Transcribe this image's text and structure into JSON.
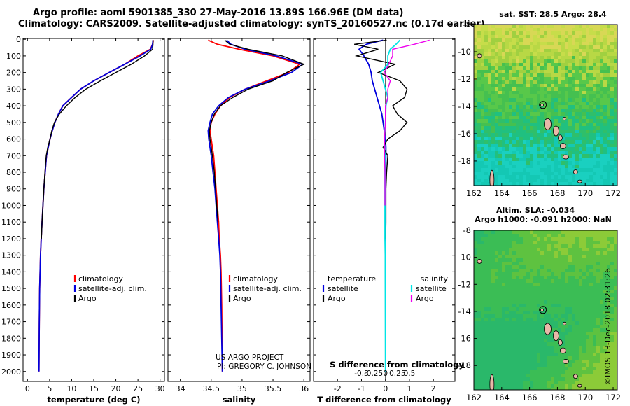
{
  "header": {
    "title": "Argo profile: aoml 5901385_330 27-May-2016 13.89S 166.96E (DM data)",
    "subtitle": "Climatology: CARS2009. Satellite-adjusted climatology: synTS_20160527.nc (0.17d earlier)"
  },
  "colors": {
    "climatology": "#ff0000",
    "satellite": "#0000dd",
    "argo": "#000000",
    "sal_satellite": "#00e5e5",
    "sal_argo": "#ee00ee"
  },
  "chart_data": [
    {
      "type": "line",
      "name": "temperature-profile",
      "xlabel": "temperature (deg C)",
      "ylabel": "",
      "xlim": [
        -1,
        31
      ],
      "ylim": [
        2060,
        -5
      ],
      "xticks": [
        0,
        5,
        10,
        15,
        20,
        25,
        30
      ],
      "yticks": [
        0,
        100,
        200,
        300,
        400,
        500,
        600,
        700,
        800,
        900,
        1000,
        1100,
        1200,
        1300,
        1400,
        1500,
        1600,
        1700,
        1800,
        1900,
        2000
      ],
      "legend": [
        "climatology",
        "satellite-adj. clim.",
        "Argo"
      ],
      "series": [
        {
          "name": "climatology",
          "color": "#ff0000",
          "x": [
            28.5,
            28.3,
            27.8,
            25,
            22,
            18.5,
            15,
            12,
            10,
            8,
            7,
            6.2,
            5.6,
            5.1,
            4.7,
            4.3,
            4,
            3.7,
            3.5,
            3.3,
            3.1,
            2.95,
            2.85,
            2.75,
            2.68,
            2.6
          ],
          "y": [
            5,
            30,
            60,
            100,
            150,
            200,
            250,
            300,
            350,
            400,
            450,
            500,
            550,
            600,
            650,
            700,
            800,
            900,
            1000,
            1100,
            1200,
            1300,
            1400,
            1500,
            1700,
            2000
          ]
        },
        {
          "name": "satellite-adj. clim.",
          "color": "#0000dd",
          "x": [
            28.4,
            28.3,
            27.9,
            25.5,
            22,
            18.5,
            15,
            12,
            10,
            8,
            7,
            6.2,
            5.6,
            5.1,
            4.7,
            4.3,
            4,
            3.7,
            3.5,
            3.3,
            3.1,
            2.95,
            2.85,
            2.75,
            2.68,
            2.6
          ],
          "y": [
            5,
            30,
            60,
            100,
            150,
            200,
            250,
            300,
            350,
            400,
            450,
            500,
            550,
            600,
            650,
            700,
            800,
            900,
            1000,
            1100,
            1200,
            1300,
            1400,
            1500,
            1700,
            2000
          ]
        },
        {
          "name": "Argo",
          "color": "#000000",
          "x": [
            28.4,
            28.4,
            28.3,
            26.5,
            23.5,
            20,
            16.5,
            13.2,
            10.8,
            8.8,
            7.2,
            6.1,
            5.5,
            5.1,
            4.6,
            4.25,
            3.95,
            3.7,
            3.5,
            3.3,
            3.15
          ],
          "y": [
            5,
            30,
            60,
            100,
            150,
            200,
            250,
            300,
            350,
            400,
            450,
            500,
            550,
            600,
            650,
            700,
            800,
            900,
            1000,
            1100,
            1200
          ]
        }
      ]
    },
    {
      "type": "line",
      "name": "salinity-profile",
      "xlabel": "salinity",
      "ylabel": "",
      "xlim": [
        33.8,
        36.1
      ],
      "ylim": [
        2060,
        -5
      ],
      "xticks": [
        34,
        34.5,
        35,
        35.5,
        36
      ],
      "xtick_labels": [
        "34",
        "34.5",
        "35",
        "35.5",
        "36"
      ],
      "legend": [
        "climatology",
        "satellite-adj. clim.",
        "Argo"
      ],
      "series": [
        {
          "name": "climatology",
          "color": "#ff0000",
          "x": [
            34.45,
            34.6,
            34.95,
            35.5,
            35.93,
            35.75,
            35.4,
            35.05,
            34.8,
            34.65,
            34.56,
            34.5,
            34.48,
            34.5,
            34.52,
            34.54,
            34.56,
            34.58,
            34.6,
            34.62,
            34.63,
            34.65,
            34.66,
            34.67,
            34.68
          ],
          "y": [
            5,
            30,
            60,
            100,
            150,
            200,
            250,
            300,
            350,
            400,
            450,
            500,
            550,
            600,
            650,
            700,
            800,
            900,
            1000,
            1100,
            1200,
            1300,
            1400,
            1600,
            2000
          ]
        },
        {
          "name": "satellite-adj. clim.",
          "color": "#0000dd",
          "x": [
            34.75,
            34.82,
            35.05,
            35.55,
            35.98,
            35.8,
            35.45,
            35.05,
            34.78,
            34.62,
            34.52,
            34.48,
            34.45,
            34.46,
            34.48,
            34.5,
            34.53,
            34.56,
            34.58,
            34.6,
            34.62,
            34.64,
            34.65,
            34.66,
            34.68
          ],
          "y": [
            5,
            30,
            60,
            100,
            150,
            200,
            250,
            300,
            350,
            400,
            450,
            500,
            550,
            600,
            650,
            700,
            800,
            900,
            1000,
            1100,
            1200,
            1300,
            1400,
            1600,
            2000
          ]
        },
        {
          "name": "Argo",
          "color": "#000000",
          "x": [
            34.72,
            34.8,
            35.1,
            35.65,
            36.0,
            35.72,
            35.5,
            35.1,
            34.85,
            34.65,
            34.55,
            34.5,
            34.47,
            34.48,
            34.5,
            34.52,
            34.55,
            34.57,
            34.59,
            34.61
          ],
          "y": [
            5,
            30,
            60,
            100,
            150,
            200,
            250,
            300,
            350,
            400,
            450,
            500,
            550,
            600,
            650,
            700,
            800,
            900,
            1000,
            1100
          ]
        }
      ]
    },
    {
      "type": "line",
      "name": "difference-profile",
      "xlabel": "T difference from climatology",
      "top_label": "S difference from climatology",
      "xlim": [
        -3,
        2.9
      ],
      "ylim": [
        2060,
        -5
      ],
      "xticks": [
        -2,
        -1,
        0,
        1,
        2
      ],
      "xtick_labels": [
        "-2",
        "-1",
        "0",
        "1",
        "2"
      ],
      "sticks": [
        -0.5,
        -0.25,
        0,
        0.25,
        0.5
      ],
      "stick_labels": [
        "-0.5",
        "-0.25",
        "0",
        "0.25",
        "0.5"
      ],
      "legend": {
        "temperature_heading": "temperature",
        "salinity_heading": "salinity",
        "satellite": "satellite",
        "argo": "Argo"
      },
      "series": [
        {
          "name": "temperature satellite",
          "color": "#0000dd",
          "x": [
            -0.1,
            -0.8,
            -1.1,
            -0.9,
            -0.7,
            -0.6,
            -0.55,
            -0.45,
            -0.35,
            -0.25,
            -0.15,
            -0.1,
            -0.05,
            0,
            0.02,
            0.02,
            0.01,
            0.01,
            0.01,
            0.01,
            0.01,
            0.01
          ],
          "y": [
            5,
            30,
            60,
            100,
            150,
            200,
            250,
            300,
            350,
            400,
            450,
            500,
            550,
            600,
            650,
            700,
            800,
            900,
            1000,
            1100,
            1200,
            2000
          ]
        },
        {
          "name": "temperature Argo",
          "color": "#000000",
          "x": [
            0.05,
            -1.3,
            -0.3,
            -1.2,
            0.4,
            -0.3,
            0.6,
            0.9,
            0.8,
            0.3,
            0.5,
            0.9,
            0.6,
            0.1,
            -0.1,
            0.1,
            0.05,
            0.02,
            0.02,
            0.02,
            0.01
          ],
          "y": [
            5,
            30,
            60,
            100,
            150,
            200,
            250,
            300,
            350,
            400,
            450,
            500,
            550,
            600,
            650,
            700,
            800,
            900,
            1000,
            1100,
            1200
          ]
        },
        {
          "name": "salinity satellite",
          "color": "#00e5e5",
          "x": [
            0.3,
            0.22,
            0.1,
            0.05,
            0.05,
            -0.1,
            -0.05,
            0,
            0.05,
            0.01,
            0.005,
            0,
            -0.01,
            -0.02,
            -0.03,
            -0.01,
            -0.01,
            -0.01,
            -0.01,
            -0.01,
            -0.01,
            -0.005,
            -0.005,
            0
          ],
          "y": [
            5,
            30,
            60,
            100,
            150,
            200,
            250,
            300,
            350,
            400,
            450,
            500,
            550,
            600,
            650,
            700,
            800,
            900,
            1000,
            1100,
            1200,
            1300,
            1400,
            2000
          ]
        },
        {
          "name": "salinity Argo",
          "color": "#ee00ee",
          "x": [
            0.92,
            0.6,
            0.15,
            0.15,
            0.07,
            -0.03,
            0.1,
            0.05,
            0.05,
            0,
            0,
            0,
            -0.01,
            -0.02,
            -0.02,
            -0.02,
            -0.01,
            -0.01,
            -0.01
          ],
          "y": [
            5,
            30,
            60,
            100,
            150,
            200,
            250,
            300,
            350,
            400,
            450,
            500,
            550,
            600,
            650,
            700,
            800,
            900,
            1000
          ]
        }
      ]
    },
    {
      "type": "heatmap",
      "name": "sst-map",
      "title": "sat. SST: 28.5 Argo: 28.4",
      "xlim": [
        162,
        172.3
      ],
      "ylim": [
        -19.8,
        -8
      ],
      "xticks": [
        162,
        164,
        166,
        168,
        170,
        172
      ],
      "yticks": [
        -8,
        -10,
        -12,
        -14,
        -16,
        -18
      ],
      "float_position": [
        166.96,
        -13.89
      ]
    },
    {
      "type": "heatmap",
      "name": "sla-map",
      "title": "Altim. SLA: -0.034",
      "subtitle": "Argo h1000: -0.091 h2000: NaN",
      "xlim": [
        162,
        172.3
      ],
      "ylim": [
        -19.8,
        -8
      ],
      "xticks": [
        162,
        164,
        166,
        168,
        170,
        172
      ],
      "yticks": [
        -8,
        -10,
        -12,
        -14,
        -16,
        -18
      ],
      "float_position": [
        166.96,
        -13.89
      ]
    }
  ],
  "credits": {
    "line1": "US ARGO PROJECT",
    "line2": "PI: GREGORY C. JOHNSON"
  },
  "stamp": "©IMOS 13-Dec-2018 02:31:26"
}
